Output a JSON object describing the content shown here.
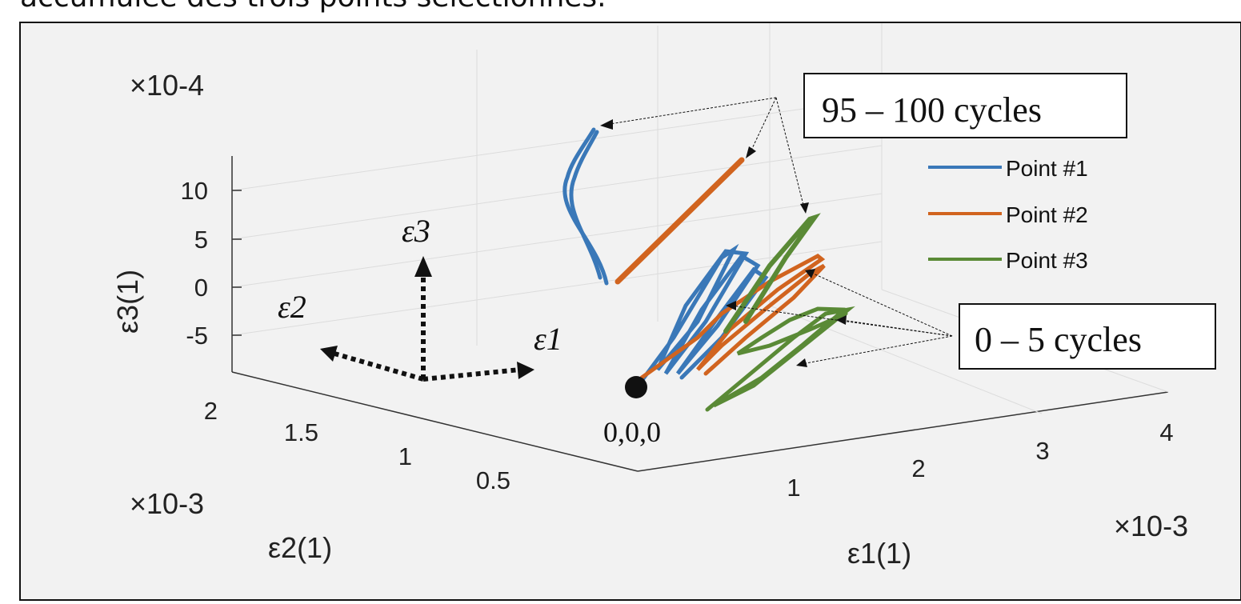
{
  "caption": "accumulée des trois points sélectionnés.",
  "chart_data": {
    "type": "line",
    "projection": "3d",
    "xlabel": "ε1(1)",
    "ylabel": "ε2(1)",
    "zlabel": "ε3(1)",
    "x_multiplier": "×10-3",
    "y_multiplier": "×10-3",
    "z_multiplier": "×10-4",
    "x_ticks": [
      "1",
      "2",
      "3",
      "4"
    ],
    "y_ticks": [
      "0.5",
      "1",
      "1.5",
      "2"
    ],
    "z_ticks": [
      "10",
      "5",
      "0",
      "-5"
    ],
    "grid": true,
    "legend_position": "right",
    "series": [
      {
        "name": "Point #1",
        "color": "#3a78b8"
      },
      {
        "name": "Point #2",
        "color": "#d1641f"
      },
      {
        "name": "Point #3",
        "color": "#5a8a36"
      }
    ],
    "annotations": {
      "late_cycles": "95 – 100 cycles",
      "early_cycles": "0 – 5 cycles",
      "origin": "0,0,0",
      "arrow_e1": "ε1",
      "arrow_e2": "ε2",
      "arrow_e3": "ε3"
    }
  }
}
